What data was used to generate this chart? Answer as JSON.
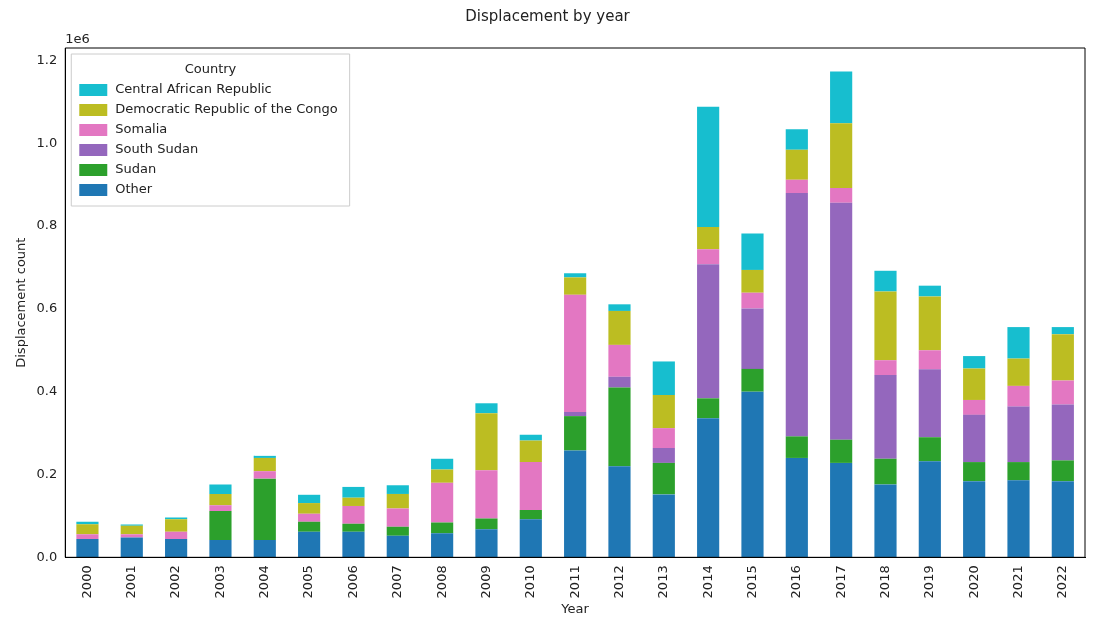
{
  "chart_data": {
    "type": "bar",
    "title": "Displacement by year",
    "xlabel": "Year",
    "ylabel": "Displacement count",
    "legend_title": "Country",
    "annotations": [
      "1e6"
    ],
    "categories": [
      "2000",
      "2001",
      "2002",
      "2003",
      "2004",
      "2005",
      "2006",
      "2007",
      "2008",
      "2009",
      "2010",
      "2011",
      "2012",
      "2013",
      "2014",
      "2015",
      "2016",
      "2017",
      "2018",
      "2019",
      "2020",
      "2021",
      "2022"
    ],
    "stacked": true,
    "legend": "top left",
    "ylim": [
      0,
      1.23
    ],
    "yticks": [
      {
        "value": 0,
        "label": "0.0"
      },
      {
        "value": 0.2,
        "label": "0.2"
      },
      {
        "value": 0.4,
        "label": "0.4"
      },
      {
        "value": 0.6,
        "label": "0.6"
      },
      {
        "value": 0.8,
        "label": "0.8"
      },
      {
        "value": 1,
        "label": "1.0"
      },
      {
        "value": 1.2,
        "label": "1.2"
      }
    ],
    "series": [
      {
        "name": "Other",
        "color": "#1f77b4",
        "values": [
          0.044,
          0.048,
          0.044,
          0.042,
          0.042,
          0.062,
          0.062,
          0.052,
          0.058,
          0.068,
          0.092,
          0.258,
          0.22,
          0.152,
          0.336,
          0.4,
          0.24,
          0.228,
          0.176,
          0.232,
          0.184,
          0.186,
          0.184
        ]
      },
      {
        "name": "Sudan",
        "color": "#2ca02c",
        "values": [
          0,
          0,
          0,
          0.07,
          0.148,
          0.024,
          0.019,
          0.022,
          0.026,
          0.026,
          0.022,
          0.083,
          0.19,
          0.076,
          0.048,
          0.055,
          0.052,
          0.056,
          0.062,
          0.058,
          0.046,
          0.044,
          0.05
        ]
      },
      {
        "name": "South Sudan",
        "color": "#9467bd",
        "values": [
          0,
          0,
          0,
          0,
          0,
          0,
          0,
          0,
          0,
          0,
          0,
          0.01,
          0.026,
          0.036,
          0.324,
          0.146,
          0.588,
          0.572,
          0.202,
          0.164,
          0.114,
          0.134,
          0.135
        ]
      },
      {
        "name": "Somalia",
        "color": "#e377c2",
        "values": [
          0.012,
          0.008,
          0.018,
          0.014,
          0.018,
          0.019,
          0.043,
          0.044,
          0.096,
          0.116,
          0.116,
          0.283,
          0.077,
          0.048,
          0.036,
          0.038,
          0.032,
          0.036,
          0.036,
          0.046,
          0.036,
          0.05,
          0.058
        ]
      },
      {
        "name": "Democratic Republic of the Congo",
        "color": "#bcbd22",
        "values": [
          0.024,
          0.02,
          0.03,
          0.027,
          0.032,
          0.026,
          0.02,
          0.035,
          0.032,
          0.138,
          0.052,
          0.042,
          0.082,
          0.08,
          0.054,
          0.055,
          0.072,
          0.156,
          0.166,
          0.13,
          0.076,
          0.066,
          0.112
        ]
      },
      {
        "name": "Central African Republic",
        "color": "#17becf",
        "values": [
          0.006,
          0.003,
          0.004,
          0.023,
          0.005,
          0.02,
          0.026,
          0.021,
          0.026,
          0.024,
          0.014,
          0.01,
          0.016,
          0.081,
          0.29,
          0.088,
          0.05,
          0.125,
          0.05,
          0.026,
          0.03,
          0.076,
          0.017
        ]
      }
    ]
  }
}
